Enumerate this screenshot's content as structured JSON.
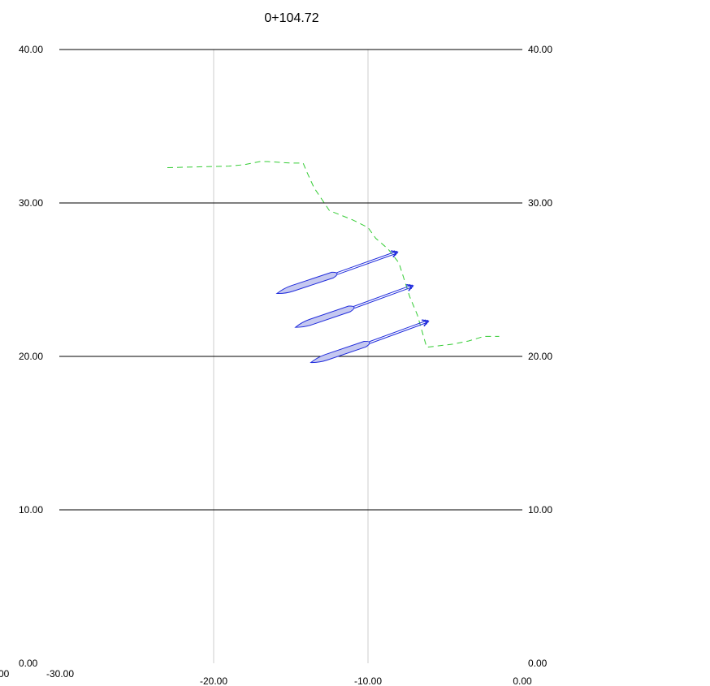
{
  "chart_data": {
    "type": "line",
    "title": "0+104.72",
    "xlabel": "",
    "ylabel": "",
    "xlim": [
      -30,
      0
    ],
    "ylim": [
      0,
      40
    ],
    "x_tick_labels": [
      {
        "value": -30,
        "label": "-30.00"
      },
      {
        "value": -20,
        "label": "-20.00"
      },
      {
        "value": -10,
        "label": "-10.00"
      },
      {
        "value": 0,
        "label": "0.00"
      }
    ],
    "y_tick_labels": [
      {
        "value": 0,
        "label": "0.00"
      },
      {
        "value": 10,
        "label": "10.00"
      },
      {
        "value": 20,
        "label": "20.00"
      },
      {
        "value": 30,
        "label": "30.00"
      },
      {
        "value": 40,
        "label": "40.00"
      }
    ],
    "cutoff_left_label": "00",
    "grid": {
      "horizontal_major": [
        10,
        20,
        30,
        40
      ],
      "vertical_minor": [
        -20,
        -10
      ]
    },
    "ground_profile": {
      "color": "#33cc33",
      "style": "dashed",
      "x": [
        -23.0,
        -19.0,
        -18.0,
        -17.0,
        -16.5,
        -15.0,
        -14.2,
        -14.0,
        -13.5,
        -12.5,
        -11.0,
        -10.0,
        -9.5,
        -8.7,
        -8.0,
        -7.3,
        -6.8,
        -6.2,
        -4.5,
        -3.5,
        -2.5,
        -1.5
      ],
      "y": [
        32.3,
        32.4,
        32.5,
        32.7,
        32.7,
        32.6,
        32.6,
        32.1,
        31.0,
        29.5,
        28.9,
        28.4,
        27.7,
        27.0,
        26.1,
        23.9,
        22.7,
        20.6,
        20.8,
        21.0,
        21.3,
        21.3
      ]
    },
    "anchors": {
      "color": "#1f2bdc",
      "fill": "#c5c8f0",
      "items": [
        {
          "tip": [
            -8.1,
            26.8
          ],
          "bond_start": [
            -12.0,
            25.4
          ],
          "bond_end": [
            -15.9,
            24.1
          ]
        },
        {
          "tip": [
            -7.1,
            24.6
          ],
          "bond_start": [
            -10.9,
            23.2
          ],
          "bond_end": [
            -14.7,
            21.9
          ]
        },
        {
          "tip": [
            -6.1,
            22.3
          ],
          "bond_start": [
            -9.9,
            20.9
          ],
          "bond_end": [
            -13.7,
            19.6
          ]
        }
      ]
    }
  }
}
